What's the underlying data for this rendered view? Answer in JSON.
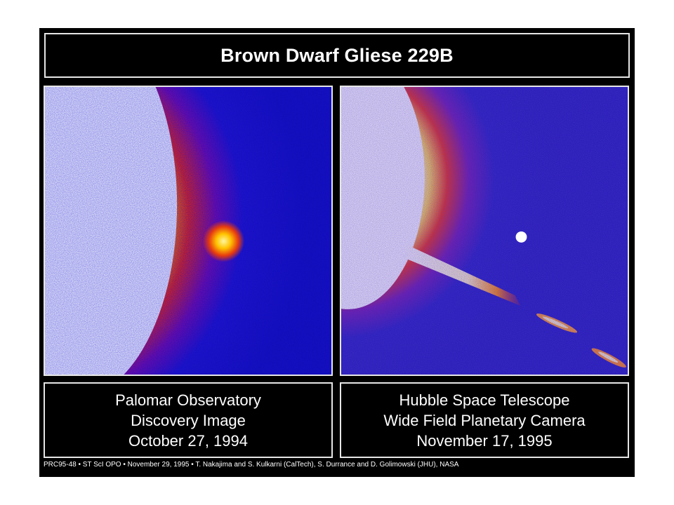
{
  "title": "Brown Dwarf Gliese 229B",
  "left_panel": {
    "caption_lines": [
      "Palomar Observatory",
      "Discovery Image",
      "October 27, 1994"
    ]
  },
  "right_panel": {
    "caption_lines": [
      "Hubble Space Telescope",
      "Wide Field Planetary Camera",
      "November 17, 1995"
    ]
  },
  "credit": "PRC95-48 • ST ScI OPO • November 29, 1995 • T. Nakajima and S. Kulkarni (CalTech), S. Durrance and D. Golimowski (JHU), NASA",
  "colors": {
    "background": "#000000",
    "border": "#e6e6e6",
    "sky_blue": "#1a14b8",
    "glow_red": "#d01010",
    "glow_orange": "#ff7a00",
    "glow_yellow": "#ffe800",
    "core_white": "#ffffff"
  }
}
